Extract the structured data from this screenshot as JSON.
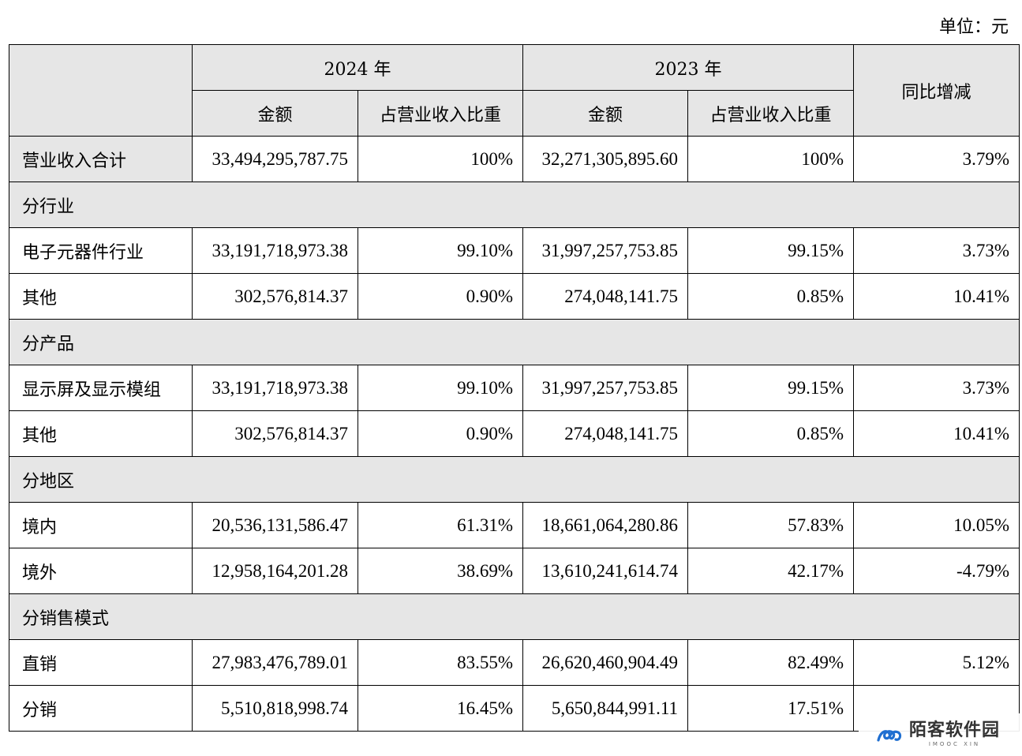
{
  "unit": "单位：元",
  "header": {
    "year_2024": "2024 年",
    "year_2023": "2023 年",
    "amount": "金额",
    "ratio": "占营业收入比重",
    "yoy": "同比增减"
  },
  "total": {
    "label": "营业收入合计",
    "a2024": "33,494,295,787.75",
    "r2024": "100%",
    "a2023": "32,271,305,895.60",
    "r2023": "100%",
    "yoy": "3.79%"
  },
  "sections": [
    {
      "title": "分行业",
      "rows": [
        {
          "label": "电子元器件行业",
          "a2024": "33,191,718,973.38",
          "r2024": "99.10%",
          "a2023": "31,997,257,753.85",
          "r2023": "99.15%",
          "yoy": "3.73%"
        },
        {
          "label": "其他",
          "a2024": "302,576,814.37",
          "r2024": "0.90%",
          "a2023": "274,048,141.75",
          "r2023": "0.85%",
          "yoy": "10.41%"
        }
      ]
    },
    {
      "title": "分产品",
      "rows": [
        {
          "label": "显示屏及显示模组",
          "a2024": "33,191,718,973.38",
          "r2024": "99.10%",
          "a2023": "31,997,257,753.85",
          "r2023": "99.15%",
          "yoy": "3.73%"
        },
        {
          "label": "其他",
          "a2024": "302,576,814.37",
          "r2024": "0.90%",
          "a2023": "274,048,141.75",
          "r2023": "0.85%",
          "yoy": "10.41%"
        }
      ]
    },
    {
      "title": "分地区",
      "rows": [
        {
          "label": "境内",
          "a2024": "20,536,131,586.47",
          "r2024": "61.31%",
          "a2023": "18,661,064,280.86",
          "r2023": "57.83%",
          "yoy": "10.05%"
        },
        {
          "label": "境外",
          "a2024": "12,958,164,201.28",
          "r2024": "38.69%",
          "a2023": "13,610,241,614.74",
          "r2023": "42.17%",
          "yoy": "-4.79%"
        }
      ]
    },
    {
      "title": "分销售模式",
      "rows": [
        {
          "label": "直销",
          "a2024": "27,983,476,789.01",
          "r2024": "83.55%",
          "a2023": "26,620,460,904.49",
          "r2023": "82.49%",
          "yoy": "5.12%"
        },
        {
          "label": "分销",
          "a2024": "5,510,818,998.74",
          "r2024": "16.45%",
          "a2023": "5,650,844,991.11",
          "r2023": "17.51%",
          "yoy": ""
        }
      ]
    }
  ],
  "watermark": {
    "main": "陌客软件园",
    "sub": "IMOOC XIN",
    "icon": "mooc-logo-icon",
    "color": "#1f6fd1"
  }
}
